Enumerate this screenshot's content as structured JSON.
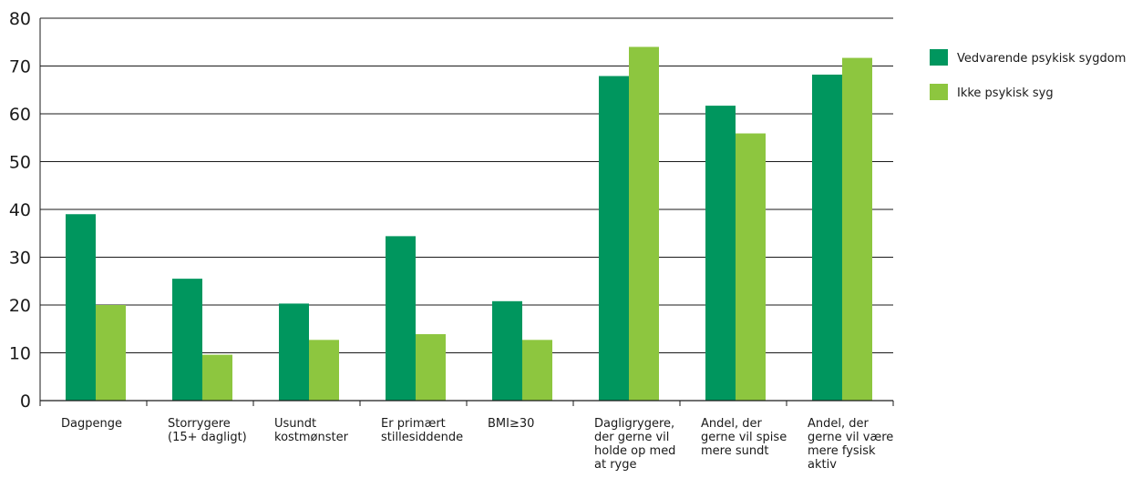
{
  "chart_data": {
    "type": "bar",
    "title": "",
    "xlabel": "",
    "ylabel": "",
    "ylim": [
      0,
      80
    ],
    "yticks": [
      0,
      10,
      20,
      30,
      40,
      50,
      60,
      70,
      80
    ],
    "grid": true,
    "legend_position": "top-right",
    "categories": [
      [
        "Dagpenge"
      ],
      [
        "Storrygere",
        "(15+ dagligt)"
      ],
      [
        "Usundt",
        "kostmønster"
      ],
      [
        "Er primært",
        "stillesiddende"
      ],
      [
        "BMI≥30"
      ],
      [
        "Dagligrygere,",
        "der gerne vil",
        "holde op med",
        "at ryge"
      ],
      [
        "Andel, der",
        "gerne vil spise",
        "mere sundt"
      ],
      [
        "Andel, der",
        "gerne vil være",
        "mere fysisk",
        "aktiv"
      ]
    ],
    "series": [
      {
        "name": "Vedvarende psykisk sygdom",
        "color": "#00965e",
        "values": [
          39,
          25.5,
          20.3,
          34.4,
          20.8,
          67.9,
          61.7,
          68.2
        ]
      },
      {
        "name": "Ikke psykisk syg",
        "color": "#8dc63f",
        "values": [
          20,
          9.6,
          12.7,
          13.9,
          12.7,
          74,
          55.9,
          71.7
        ]
      }
    ]
  }
}
